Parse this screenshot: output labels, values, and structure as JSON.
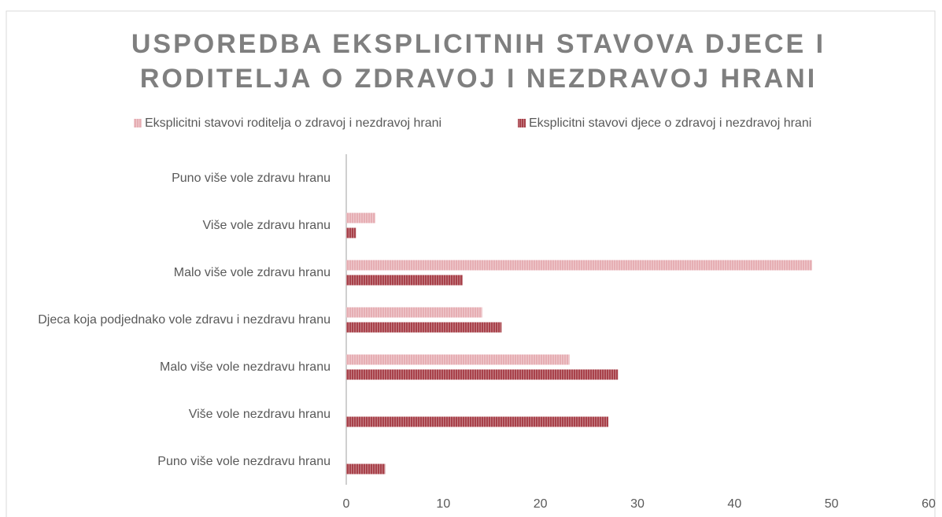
{
  "chart_data": {
    "type": "barh",
    "title": [
      "USPOREDBA EKSPLICITNIH STAVOVA DJECE I",
      "RODITELJA O ZDRAVOJ I NEZDRAVOJ HRANI"
    ],
    "categories": [
      "Puno više vole zdravu hranu",
      "Više vole zdravu hranu",
      "Malo više vole zdravu hranu",
      "Djeca koja podjednako vole zdravu i nezdravu hranu",
      "Malo više vole nezdravu hranu",
      "Više vole nezdravu hranu",
      "Puno više vole nezdravu hranu"
    ],
    "series": [
      {
        "name": "Eksplicitni stavovi roditelja o zdravoj i nezdravoj hrani",
        "color": "#e6aeb3",
        "values": [
          0,
          3,
          48,
          14,
          23,
          0,
          0
        ]
      },
      {
        "name": "Eksplicitni stavovi djece o zdravoj i nezdravoj hrani",
        "color": "#a8414a",
        "values": [
          0,
          1,
          12,
          16,
          28,
          27,
          4
        ]
      }
    ],
    "xlim": [
      0,
      60
    ],
    "xticks": [
      0,
      10,
      20,
      30,
      40,
      50,
      60
    ],
    "grid": false
  }
}
